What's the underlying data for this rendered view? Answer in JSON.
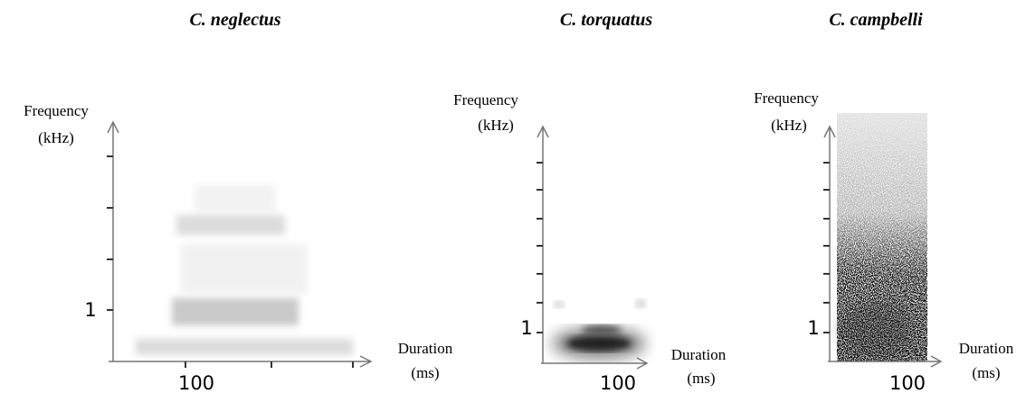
{
  "panels": [
    {
      "title": "C. neglectus",
      "y_label": [
        "Frequency",
        "(kHz)"
      ],
      "y_tick_label": "1",
      "x_tick_label": "100",
      "x_label": [
        "Duration",
        "(ms)"
      ]
    },
    {
      "title": "C. torquatus",
      "y_label": [
        "Frequency",
        "(kHz)"
      ],
      "y_tick_label": "1",
      "x_tick_label": "100",
      "x_label": [
        "Duration",
        "(ms)"
      ]
    },
    {
      "title": "C. campbelli",
      "y_label": [
        "Frequency",
        "(kHz)"
      ],
      "y_tick_label": "1",
      "x_tick_label": "100",
      "x_label": [
        "Duration",
        "(ms)"
      ]
    }
  ]
}
